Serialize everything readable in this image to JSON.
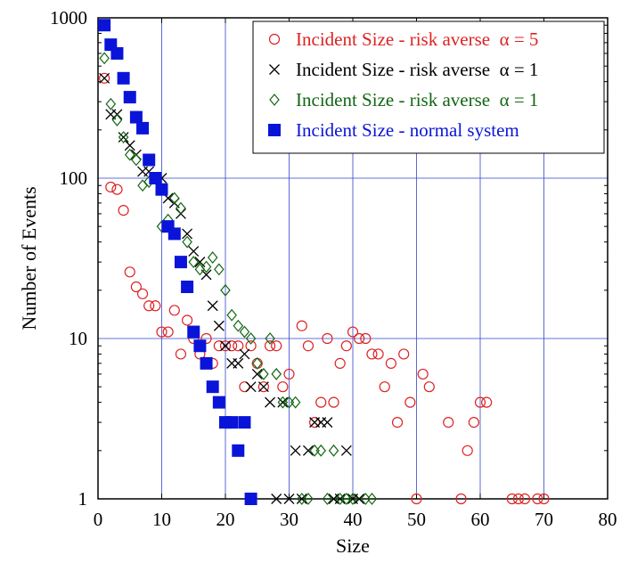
{
  "chart_data": {
    "type": "scatter",
    "xlabel": "Size",
    "ylabel": "Number of Events",
    "xlim": [
      0,
      80
    ],
    "ylim": [
      1,
      1000
    ],
    "yscale": "log",
    "grid": true,
    "legend_position": "top-right",
    "xticks": [
      "0",
      "10",
      "20",
      "30",
      "40",
      "50",
      "60",
      "70",
      "80"
    ],
    "yticks": [
      "1",
      "10",
      "100",
      "1000"
    ],
    "colors": {
      "grid": "#3344cc",
      "frame": "#000000"
    },
    "series": [
      {
        "name": "Incident Size - risk averse  α = 5",
        "marker": "circle-open",
        "color": "#dd2222",
        "points": [
          [
            1,
            420
          ],
          [
            2,
            88
          ],
          [
            3,
            85
          ],
          [
            4,
            63
          ],
          [
            5,
            26
          ],
          [
            6,
            21
          ],
          [
            7,
            19
          ],
          [
            8,
            16
          ],
          [
            9,
            16
          ],
          [
            10,
            11
          ],
          [
            11,
            11
          ],
          [
            12,
            15
          ],
          [
            13,
            8
          ],
          [
            14,
            13
          ],
          [
            15,
            10
          ],
          [
            16,
            8
          ],
          [
            17,
            10
          ],
          [
            18,
            7
          ],
          [
            19,
            9
          ],
          [
            20,
            9
          ],
          [
            21,
            9
          ],
          [
            22,
            9
          ],
          [
            23,
            5
          ],
          [
            24,
            9
          ],
          [
            25,
            7
          ],
          [
            26,
            5
          ],
          [
            27,
            9
          ],
          [
            28,
            9
          ],
          [
            29,
            5
          ],
          [
            30,
            6
          ],
          [
            32,
            12
          ],
          [
            33,
            9
          ],
          [
            34,
            3
          ],
          [
            35,
            4
          ],
          [
            36,
            10
          ],
          [
            37,
            4
          ],
          [
            38,
            7
          ],
          [
            39,
            9
          ],
          [
            40,
            11
          ],
          [
            41,
            10
          ],
          [
            42,
            10
          ],
          [
            43,
            8
          ],
          [
            44,
            8
          ],
          [
            45,
            5
          ],
          [
            46,
            7
          ],
          [
            47,
            3
          ],
          [
            48,
            8
          ],
          [
            49,
            4
          ],
          [
            50,
            1
          ],
          [
            51,
            6
          ],
          [
            52,
            5
          ],
          [
            55,
            3
          ],
          [
            57,
            1
          ],
          [
            58,
            2
          ],
          [
            59,
            3
          ],
          [
            60,
            4
          ],
          [
            61,
            4
          ],
          [
            65,
            1
          ],
          [
            66,
            1
          ],
          [
            67,
            1
          ],
          [
            69,
            1
          ],
          [
            70,
            1
          ]
        ]
      },
      {
        "name": "Incident Size - risk averse  α = 1",
        "marker": "x",
        "color": "#000000",
        "points": [
          [
            1,
            420
          ],
          [
            2,
            250
          ],
          [
            3,
            250
          ],
          [
            4,
            180
          ],
          [
            5,
            160
          ],
          [
            6,
            140
          ],
          [
            7,
            110
          ],
          [
            8,
            110
          ],
          [
            9,
            100
          ],
          [
            10,
            100
          ],
          [
            11,
            75
          ],
          [
            12,
            70
          ],
          [
            13,
            60
          ],
          [
            14,
            45
          ],
          [
            15,
            35
          ],
          [
            16,
            30
          ],
          [
            17,
            25
          ],
          [
            18,
            16
          ],
          [
            19,
            12
          ],
          [
            20,
            9
          ],
          [
            21,
            7
          ],
          [
            22,
            7
          ],
          [
            23,
            8
          ],
          [
            24,
            5
          ],
          [
            25,
            6
          ],
          [
            26,
            5
          ],
          [
            27,
            4
          ],
          [
            28,
            1
          ],
          [
            29,
            4
          ],
          [
            30,
            1
          ],
          [
            31,
            2
          ],
          [
            32,
            1
          ],
          [
            33,
            2
          ],
          [
            34,
            3
          ],
          [
            35,
            3
          ],
          [
            36,
            3
          ],
          [
            37,
            1
          ],
          [
            38,
            1
          ],
          [
            39,
            2
          ],
          [
            40,
            1
          ],
          [
            41,
            1
          ]
        ]
      },
      {
        "name": "Incident Size - risk averse  α = 1",
        "marker": "diamond-open",
        "color": "#116611",
        "points": [
          [
            1,
            560
          ],
          [
            2,
            290
          ],
          [
            3,
            230
          ],
          [
            4,
            180
          ],
          [
            5,
            140
          ],
          [
            6,
            130
          ],
          [
            7,
            90
          ],
          [
            8,
            95
          ],
          [
            9,
            100
          ],
          [
            10,
            50
          ],
          [
            11,
            55
          ],
          [
            12,
            75
          ],
          [
            13,
            65
          ],
          [
            14,
            40
          ],
          [
            15,
            30
          ],
          [
            16,
            27
          ],
          [
            17,
            28
          ],
          [
            18,
            32
          ],
          [
            19,
            27
          ],
          [
            20,
            20
          ],
          [
            21,
            14
          ],
          [
            22,
            12
          ],
          [
            23,
            11
          ],
          [
            24,
            10
          ],
          [
            25,
            7
          ],
          [
            26,
            6
          ],
          [
            27,
            10
          ],
          [
            28,
            6
          ],
          [
            29,
            4
          ],
          [
            30,
            4
          ],
          [
            31,
            4
          ],
          [
            32,
            1
          ],
          [
            33,
            1
          ],
          [
            34,
            2
          ],
          [
            35,
            2
          ],
          [
            36,
            1
          ],
          [
            37,
            2
          ],
          [
            38,
            1
          ],
          [
            39,
            1
          ],
          [
            40,
            1
          ],
          [
            42,
            1
          ],
          [
            43,
            1
          ]
        ]
      },
      {
        "name": "Incident Size - normal system",
        "marker": "square-filled",
        "color": "#0a14d8",
        "points": [
          [
            1,
            900
          ],
          [
            2,
            680
          ],
          [
            3,
            600
          ],
          [
            4,
            420
          ],
          [
            5,
            320
          ],
          [
            6,
            240
          ],
          [
            7,
            205
          ],
          [
            8,
            130
          ],
          [
            9,
            100
          ],
          [
            10,
            85
          ],
          [
            11,
            50
          ],
          [
            12,
            45
          ],
          [
            13,
            30
          ],
          [
            14,
            21
          ],
          [
            15,
            11
          ],
          [
            16,
            9
          ],
          [
            17,
            7
          ],
          [
            18,
            5
          ],
          [
            19,
            4
          ],
          [
            20,
            3
          ],
          [
            21,
            3
          ],
          [
            22,
            2
          ],
          [
            23,
            3
          ],
          [
            24,
            1
          ]
        ]
      }
    ]
  }
}
